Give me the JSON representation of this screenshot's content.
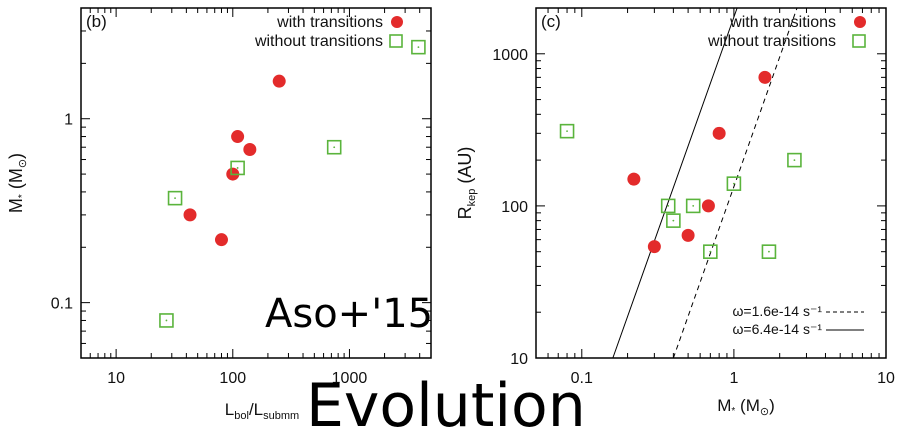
{
  "headline": "Evolution",
  "watermark": "Aso+'15",
  "colors": {
    "with": "#e32b2b",
    "without": "#5ab43c",
    "axis": "#000000"
  },
  "chart_data": [
    {
      "type": "scatter",
      "panel_label": "(b)",
      "xscale": "log",
      "yscale": "log",
      "xlim": [
        5,
        5000
      ],
      "ylim": [
        0.05,
        4
      ],
      "xticks": [
        {
          "v": 10,
          "label": "10"
        },
        {
          "v": 100,
          "label": "100"
        },
        {
          "v": 1000,
          "label": "1000"
        }
      ],
      "yticks": [
        {
          "v": 0.1,
          "label": "0.1"
        },
        {
          "v": 1,
          "label": "1"
        }
      ],
      "xlabel": "Lbol/Lsubmm",
      "ylabel": "M* (M⊙)",
      "legend_position": "top-right",
      "series": [
        {
          "name": "with transitions",
          "marker": "filled-circle",
          "x": [
            43,
            80,
            100,
            110,
            140,
            250
          ],
          "y": [
            0.3,
            0.22,
            0.5,
            0.8,
            0.68,
            1.6
          ]
        },
        {
          "name": "without transitions",
          "marker": "open-square",
          "x": [
            27,
            32,
            110,
            740,
            3900
          ],
          "y": [
            0.08,
            0.37,
            0.54,
            0.7,
            2.45
          ]
        }
      ]
    },
    {
      "type": "scatter",
      "panel_label": "(c)",
      "xscale": "log",
      "yscale": "log",
      "xlim": [
        0.05,
        10
      ],
      "ylim": [
        10,
        2000
      ],
      "xticks": [
        {
          "v": 0.1,
          "label": "0.1"
        },
        {
          "v": 1,
          "label": "1"
        },
        {
          "v": 10,
          "label": "10"
        }
      ],
      "yticks": [
        {
          "v": 10,
          "label": "10"
        },
        {
          "v": 100,
          "label": "100"
        },
        {
          "v": 1000,
          "label": "1000"
        }
      ],
      "xlabel": "M* (M⊙)",
      "ylabel": "Rkep (AU)",
      "legend_position": "top-right",
      "series": [
        {
          "name": "with transitions",
          "marker": "filled-circle",
          "x": [
            0.22,
            0.3,
            0.5,
            0.68,
            0.8,
            1.6
          ],
          "y": [
            150,
            54,
            64,
            100,
            300,
            700
          ]
        },
        {
          "name": "without transitions",
          "marker": "open-square",
          "x": [
            0.08,
            0.37,
            0.4,
            0.54,
            0.7,
            1.0,
            1.7,
            2.5
          ],
          "y": [
            310,
            100,
            80,
            100,
            50,
            140,
            50,
            200
          ]
        }
      ],
      "lines": [
        {
          "name": "ω=1.6e-14 s⁻¹",
          "style": "dashed",
          "points": [
            [
              0.4,
              10
            ],
            [
              2.6,
              2000
            ]
          ]
        },
        {
          "name": "ω=6.4e-14 s⁻¹",
          "style": "solid",
          "points": [
            [
              0.16,
              10
            ],
            [
              1.05,
              2000
            ]
          ]
        }
      ]
    }
  ]
}
